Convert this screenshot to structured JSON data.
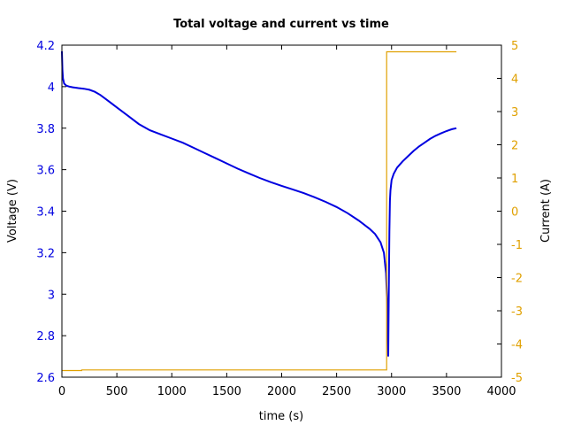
{
  "chart_data": {
    "type": "line",
    "title": "Total voltage and current vs time",
    "xlabel": "time (s)",
    "ylabel": "Voltage (V)",
    "y2label": "Current (A)",
    "xlim": [
      0,
      4000
    ],
    "ylim": [
      2.6,
      4.2
    ],
    "y2lim": [
      -5,
      5
    ],
    "xticks": [
      0,
      500,
      1000,
      1500,
      2000,
      2500,
      3000,
      3500,
      4000
    ],
    "yticks": [
      2.6,
      2.8,
      3.0,
      3.2,
      3.4,
      3.6,
      3.8,
      4.0,
      4.2
    ],
    "ytick_labels": [
      "2.6",
      "2.8",
      "3",
      "3.2",
      "3.4",
      "3.6",
      "3.8",
      "4",
      "4.2"
    ],
    "y2ticks": [
      -5,
      -4,
      -3,
      -2,
      -1,
      0,
      1,
      2,
      3,
      4,
      5
    ],
    "grid": false,
    "colors": {
      "voltage": "#0000e0",
      "current": "#e0a000"
    },
    "series": [
      {
        "axis": "left",
        "x": [
          0,
          5,
          10,
          20,
          40,
          70,
          100,
          150,
          200,
          250,
          300,
          350,
          400,
          500,
          600,
          700,
          800,
          900,
          1000,
          1100,
          1200,
          1300,
          1400,
          1500,
          1600,
          1700,
          1800,
          1900,
          2000,
          2100,
          2200,
          2300,
          2400,
          2500,
          2600,
          2700,
          2800,
          2850,
          2900,
          2930,
          2950,
          2960,
          2965,
          2970,
          2975,
          2980,
          2985,
          2990,
          3000,
          3020,
          3050,
          3100,
          3150,
          3200,
          3250,
          3300,
          3350,
          3400,
          3450,
          3500,
          3550,
          3590
        ],
        "values": [
          4.17,
          4.08,
          4.04,
          4.015,
          4.005,
          4.0,
          3.997,
          3.993,
          3.99,
          3.985,
          3.975,
          3.96,
          3.94,
          3.9,
          3.86,
          3.82,
          3.79,
          3.77,
          3.75,
          3.73,
          3.705,
          3.68,
          3.655,
          3.63,
          3.605,
          3.582,
          3.56,
          3.54,
          3.522,
          3.505,
          3.487,
          3.467,
          3.445,
          3.42,
          3.39,
          3.355,
          3.315,
          3.29,
          3.25,
          3.2,
          3.1,
          2.95,
          2.8,
          2.7,
          3.0,
          3.3,
          3.45,
          3.5,
          3.55,
          3.58,
          3.61,
          3.64,
          3.665,
          3.69,
          3.712,
          3.73,
          3.748,
          3.763,
          3.775,
          3.786,
          3.795,
          3.8
        ]
      },
      {
        "axis": "right",
        "x": [
          0,
          180,
          180,
          2955,
          2955,
          3590
        ],
        "values": [
          -4.8,
          -4.8,
          -4.78,
          -4.78,
          4.8,
          4.8
        ]
      }
    ]
  }
}
